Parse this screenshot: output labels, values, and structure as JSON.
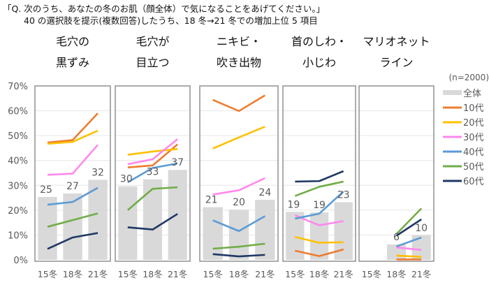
{
  "question": {
    "line1": "「Q. 次のうち、あなたの冬のお肌（顔全体）で気になることをあげてください。」",
    "line2": "40 の選択肢を提示(複数回答)したうち、18 冬→21 冬での増加上位 5 項目"
  },
  "chart_data": {
    "type": "bar+line",
    "note": "(n=2000)",
    "ylim": [
      0,
      70
    ],
    "yticks": [
      "0%",
      "10%",
      "20%",
      "30%",
      "40%",
      "50%",
      "60%",
      "70%"
    ],
    "categories": [
      "15冬",
      "18冬",
      "21冬"
    ],
    "colors": {
      "全体": "#d9d9d9",
      "10代": "#ed7d31",
      "20代": "#ffc000",
      "30代": "#ff88ee",
      "40代": "#5b9bd5",
      "50代": "#70ad47",
      "60代": "#203864"
    },
    "legend": [
      "全体",
      "10代",
      "20代",
      "30代",
      "40代",
      "50代",
      "60代"
    ],
    "legend_position": "right",
    "panels": [
      {
        "title": [
          "毛穴の",
          "黒ずみ"
        ],
        "bar_labels": [
          "25",
          "27",
          "32"
        ],
        "bars": [
          25.3,
          26.7,
          32.2
        ],
        "series": {
          "10代": [
            47.2,
            48.2,
            59
          ],
          "20代": [
            46.7,
            47.5,
            52
          ],
          "30代": [
            34.2,
            34.7,
            46.3
          ],
          "40代": [
            22.2,
            23.3,
            29
          ],
          "50代": [
            13.3,
            16,
            18.7
          ],
          "60代": [
            4.4,
            9,
            10.8
          ]
        }
      },
      {
        "title": [
          "毛穴が",
          "目立つ"
        ],
        "bar_labels": [
          "30",
          "33",
          "37"
        ],
        "bars": [
          29.6,
          32.4,
          36.2
        ],
        "series": {
          "10代": [
            37.2,
            38,
            46.5
          ],
          "20代": [
            42.3,
            43.6,
            44.6
          ],
          "30代": [
            38.5,
            40.5,
            48.6
          ],
          "40代": [
            31.2,
            37,
            38.8
          ],
          "50代": [
            20,
            28.6,
            29.2
          ],
          "60代": [
            13.1,
            12.2,
            18.5
          ]
        }
      },
      {
        "title": [
          "ニキビ・",
          "吹き出物"
        ],
        "bar_labels": [
          "21",
          "20",
          "24"
        ],
        "bars": [
          21.2,
          20.2,
          24.2
        ],
        "series": {
          "10代": [
            64.4,
            59.9,
            66.2
          ],
          "20代": [
            44.8,
            49.3,
            53.6
          ],
          "30代": [
            26.3,
            28,
            32.9
          ],
          "40代": [
            15.9,
            11.6,
            17.6
          ],
          "50代": [
            4.5,
            5.3,
            6.5
          ],
          "60代": [
            2.3,
            1.4,
            2
          ]
        }
      },
      {
        "title": [
          "首のしわ・",
          "小じわ"
        ],
        "bar_labels": [
          "19",
          "19",
          "23"
        ],
        "bars": [
          19.3,
          19.1,
          23.2
        ],
        "series": {
          "10代": [
            3.7,
            1.5,
            4.2
          ],
          "20代": [
            9.2,
            6.9,
            7.1
          ],
          "30代": [
            17.9,
            13.9,
            15.6
          ],
          "40代": [
            16.6,
            18.6,
            27.5
          ],
          "50代": [
            25.7,
            29.4,
            31.5
          ],
          "60代": [
            31.5,
            31.7,
            35.7
          ]
        }
      },
      {
        "title": [
          "マリオネット",
          "ライン"
        ],
        "bar_labels": [
          "",
          "6",
          "10"
        ],
        "bars": [
          null,
          6.2,
          9.9
        ],
        "series": {
          "10代": [
            null,
            0.2,
            0.2
          ],
          "20代": [
            null,
            1.7,
            1.2
          ],
          "30代": [
            null,
            5,
            4
          ],
          "40代": [
            null,
            5.4,
            9
          ],
          "50代": [
            null,
            10.4,
            20.7
          ],
          "60代": [
            null,
            9.7,
            16.3
          ]
        }
      }
    ]
  }
}
